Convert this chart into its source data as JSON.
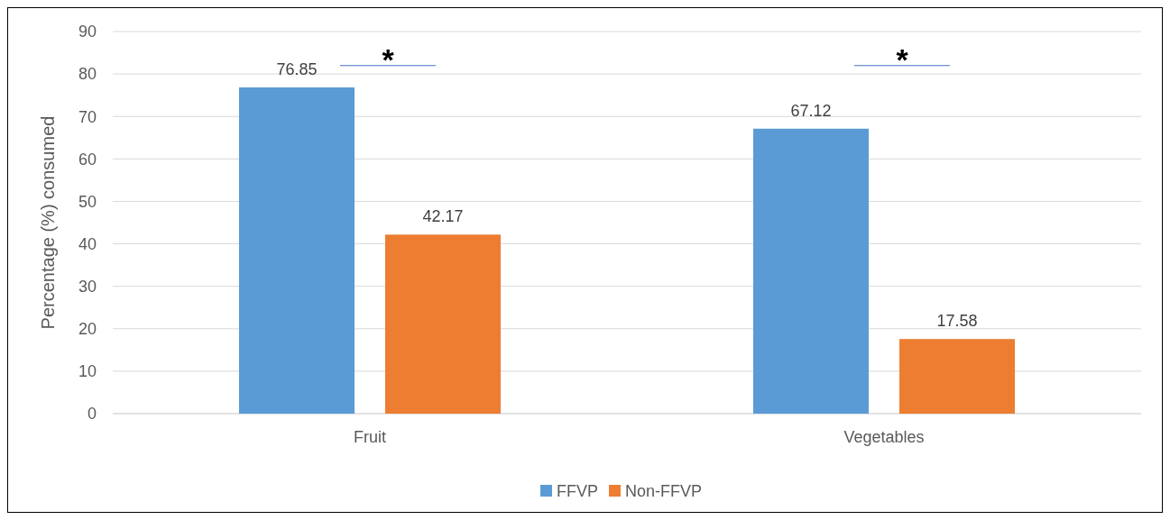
{
  "chart_data": {
    "type": "bar",
    "ylabel": "Percentage (%) consumed",
    "categories": [
      "Fruit",
      "Vegetables"
    ],
    "series": [
      {
        "name": "FFVP",
        "color": "#5b9bd5",
        "values": [
          76.85,
          67.12
        ]
      },
      {
        "name": "Non-FFVP",
        "color": "#ed7d31",
        "values": [
          42.17,
          17.58
        ]
      }
    ],
    "ylim": [
      0,
      90
    ],
    "yticks": [
      0,
      10,
      20,
      30,
      40,
      50,
      60,
      70,
      80,
      90
    ],
    "grid": "y",
    "legend": "bottom",
    "data_labels": true,
    "annotations": [
      "*",
      "*"
    ]
  }
}
